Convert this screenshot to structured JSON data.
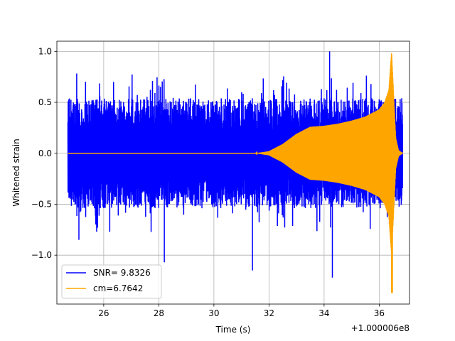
{
  "chart_data": {
    "type": "line",
    "title": "",
    "xlabel": "Time (s)",
    "ylabel": "Whitened strain",
    "x_offset_label": "+1.000006e8",
    "xlim": [
      24.3,
      37.1
    ],
    "ylim": [
      -1.48,
      1.1
    ],
    "xticks": [
      26,
      28,
      30,
      32,
      34,
      36
    ],
    "xtick_labels": [
      "26",
      "28",
      "30",
      "32",
      "34",
      "36"
    ],
    "yticks": [
      -1.0,
      -0.5,
      0.0,
      0.5,
      1.0
    ],
    "ytick_labels": [
      "−1.0",
      "−0.5",
      "0.0",
      "0.5",
      "1.0"
    ],
    "grid": true,
    "legend_position": "lower-left",
    "series": [
      {
        "name": "SNR= 9.8326",
        "color": "#0000ff",
        "kind": "whitened-noise",
        "x_range": [
          24.7,
          36.85
        ],
        "typical_amplitude": 0.45,
        "max": 1.0,
        "min": -1.22
      },
      {
        "name": "cm=6.7642",
        "color": "#ffa500",
        "kind": "chirp-template",
        "x_range": [
          24.7,
          36.85
        ],
        "envelope": [
          {
            "x": 24.7,
            "y": 0.0
          },
          {
            "x": 31.5,
            "y": 0.0
          },
          {
            "x": 32.0,
            "y": 0.02
          },
          {
            "x": 32.5,
            "y": 0.09
          },
          {
            "x": 33.0,
            "y": 0.19
          },
          {
            "x": 33.5,
            "y": 0.26
          },
          {
            "x": 34.0,
            "y": 0.27
          },
          {
            "x": 34.5,
            "y": 0.29
          },
          {
            "x": 35.0,
            "y": 0.32
          },
          {
            "x": 35.5,
            "y": 0.36
          },
          {
            "x": 36.0,
            "y": 0.43
          },
          {
            "x": 36.2,
            "y": 0.5
          },
          {
            "x": 36.35,
            "y": 0.62
          },
          {
            "x": 36.45,
            "y": 1.0
          },
          {
            "x": 36.52,
            "y": 0.6
          },
          {
            "x": 36.6,
            "y": 0.15
          },
          {
            "x": 36.7,
            "y": 0.03
          },
          {
            "x": 36.85,
            "y": 0.0
          }
        ],
        "max": 1.0,
        "min": -1.37
      }
    ]
  }
}
